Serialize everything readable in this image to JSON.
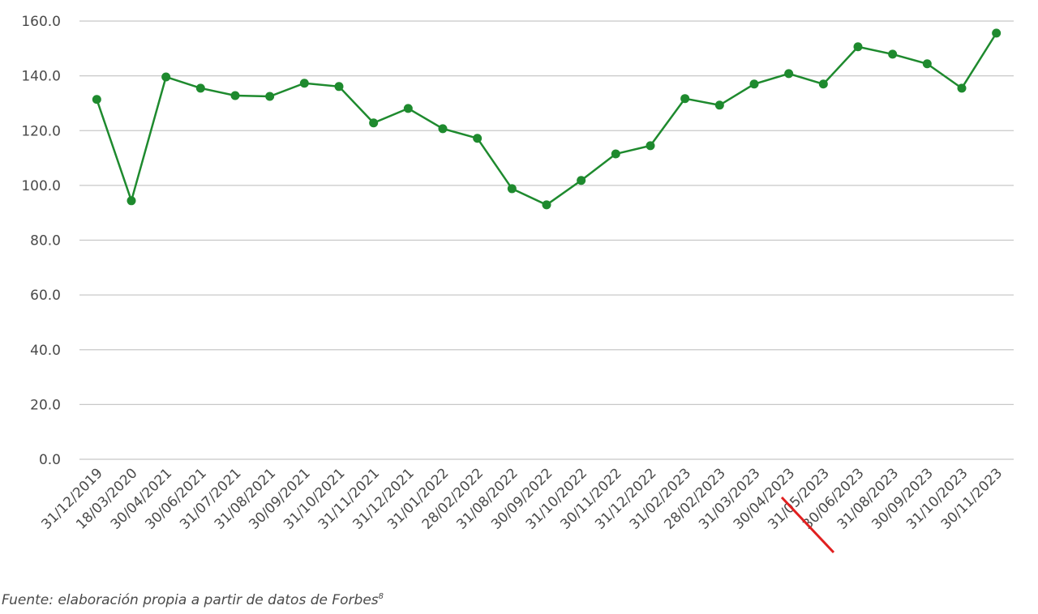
{
  "chart_data": {
    "type": "line",
    "categories": [
      "31/12/2019",
      "18/03/2020",
      "30/04/2021",
      "30/06/2021",
      "31/07/2021",
      "31/08/2021",
      "30/09/2021",
      "31/10/2021",
      "31/11/2021",
      "31/12/2021",
      "31/01/2022",
      "28/02/2022",
      "31/08/2022",
      "30/09/2022",
      "31/10/2022",
      "30/11/2022",
      "31/12/2022",
      "31/02/2023",
      "28/02/2023",
      "31/03/2023",
      "30/04/2023",
      "31/05/2023",
      "30/06/2023",
      "31/08/2023",
      "30/09/2023",
      "31/10/2023",
      "30/11/2023"
    ],
    "series": [
      {
        "color": "#1e8a2e",
        "values": [
          131.4,
          94.4,
          139.6,
          135.5,
          132.8,
          132.5,
          137.3,
          136.1,
          122.8,
          128.1,
          120.7,
          117.2,
          98.8,
          92.9,
          101.8,
          111.5,
          114.5,
          131.7,
          129.3,
          137.0,
          140.8,
          137.0,
          150.6,
          147.9,
          144.4,
          135.5,
          155.6
        ]
      }
    ],
    "ylim": [
      0,
      160
    ],
    "yticks": [
      {
        "value": 0,
        "label": "0.0"
      },
      {
        "value": 20,
        "label": "20.0"
      },
      {
        "value": 40,
        "label": "40.0"
      },
      {
        "value": 60,
        "label": "60.0"
      },
      {
        "value": 80,
        "label": "80.0"
      },
      {
        "value": 100,
        "label": "100.0"
      },
      {
        "value": 120,
        "label": "120.0"
      },
      {
        "value": 140,
        "label": "140.0"
      },
      {
        "value": 160,
        "label": "160.0"
      }
    ],
    "grid": true,
    "footnote": {
      "text": "Fuente: elaboración propia a partir de datos de Forbes",
      "ref": "8"
    }
  }
}
